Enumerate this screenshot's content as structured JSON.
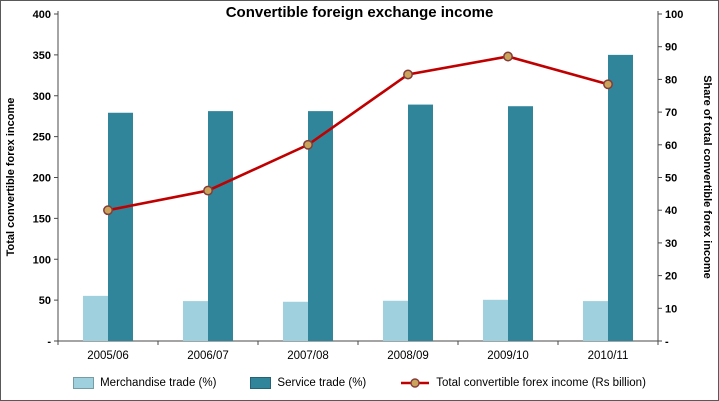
{
  "chart_data": {
    "type": "bar",
    "subtype": "combo-bar-line-dual-axis",
    "title": "Convertible foreign exchange income",
    "categories": [
      "2005/06",
      "2006/07",
      "2007/08",
      "2008/09",
      "2009/10",
      "2010/11"
    ],
    "left_axis": {
      "label": "Total convertible forex income",
      "min": 0,
      "max": 400,
      "step": 50,
      "tick_labels": [
        "400",
        "350",
        "300",
        "250",
        "200",
        "150",
        "100",
        "50",
        "-"
      ]
    },
    "right_axis": {
      "label": "Share of total convertible forex income",
      "min": 0,
      "max": 100,
      "step": 10,
      "tick_labels": [
        "100",
        "90",
        "80",
        "70",
        "60",
        "50",
        "40",
        "30",
        "20",
        "10",
        "-"
      ]
    },
    "series": [
      {
        "name": "Merchandise trade (%)",
        "type": "bar",
        "axis": "right",
        "color": "#9ed0de",
        "values": [
          13.8,
          12.2,
          12.0,
          12.3,
          12.6,
          12.2
        ]
      },
      {
        "name": "Service trade (%)",
        "type": "bar",
        "axis": "right",
        "color": "#31859b",
        "values": [
          69.8,
          70.3,
          70.3,
          72.3,
          71.8,
          87.5
        ]
      },
      {
        "name": "Total convertible forex income (Rs billion)",
        "type": "line",
        "axis": "right",
        "color": "#c00000",
        "marker_fill": "#c9a45a",
        "marker_stroke": "#843c39",
        "values": [
          40,
          46,
          60,
          81.5,
          87,
          78.5
        ]
      }
    ],
    "legend_position": "bottom",
    "grid": false,
    "plot_background": "#ffffff"
  }
}
